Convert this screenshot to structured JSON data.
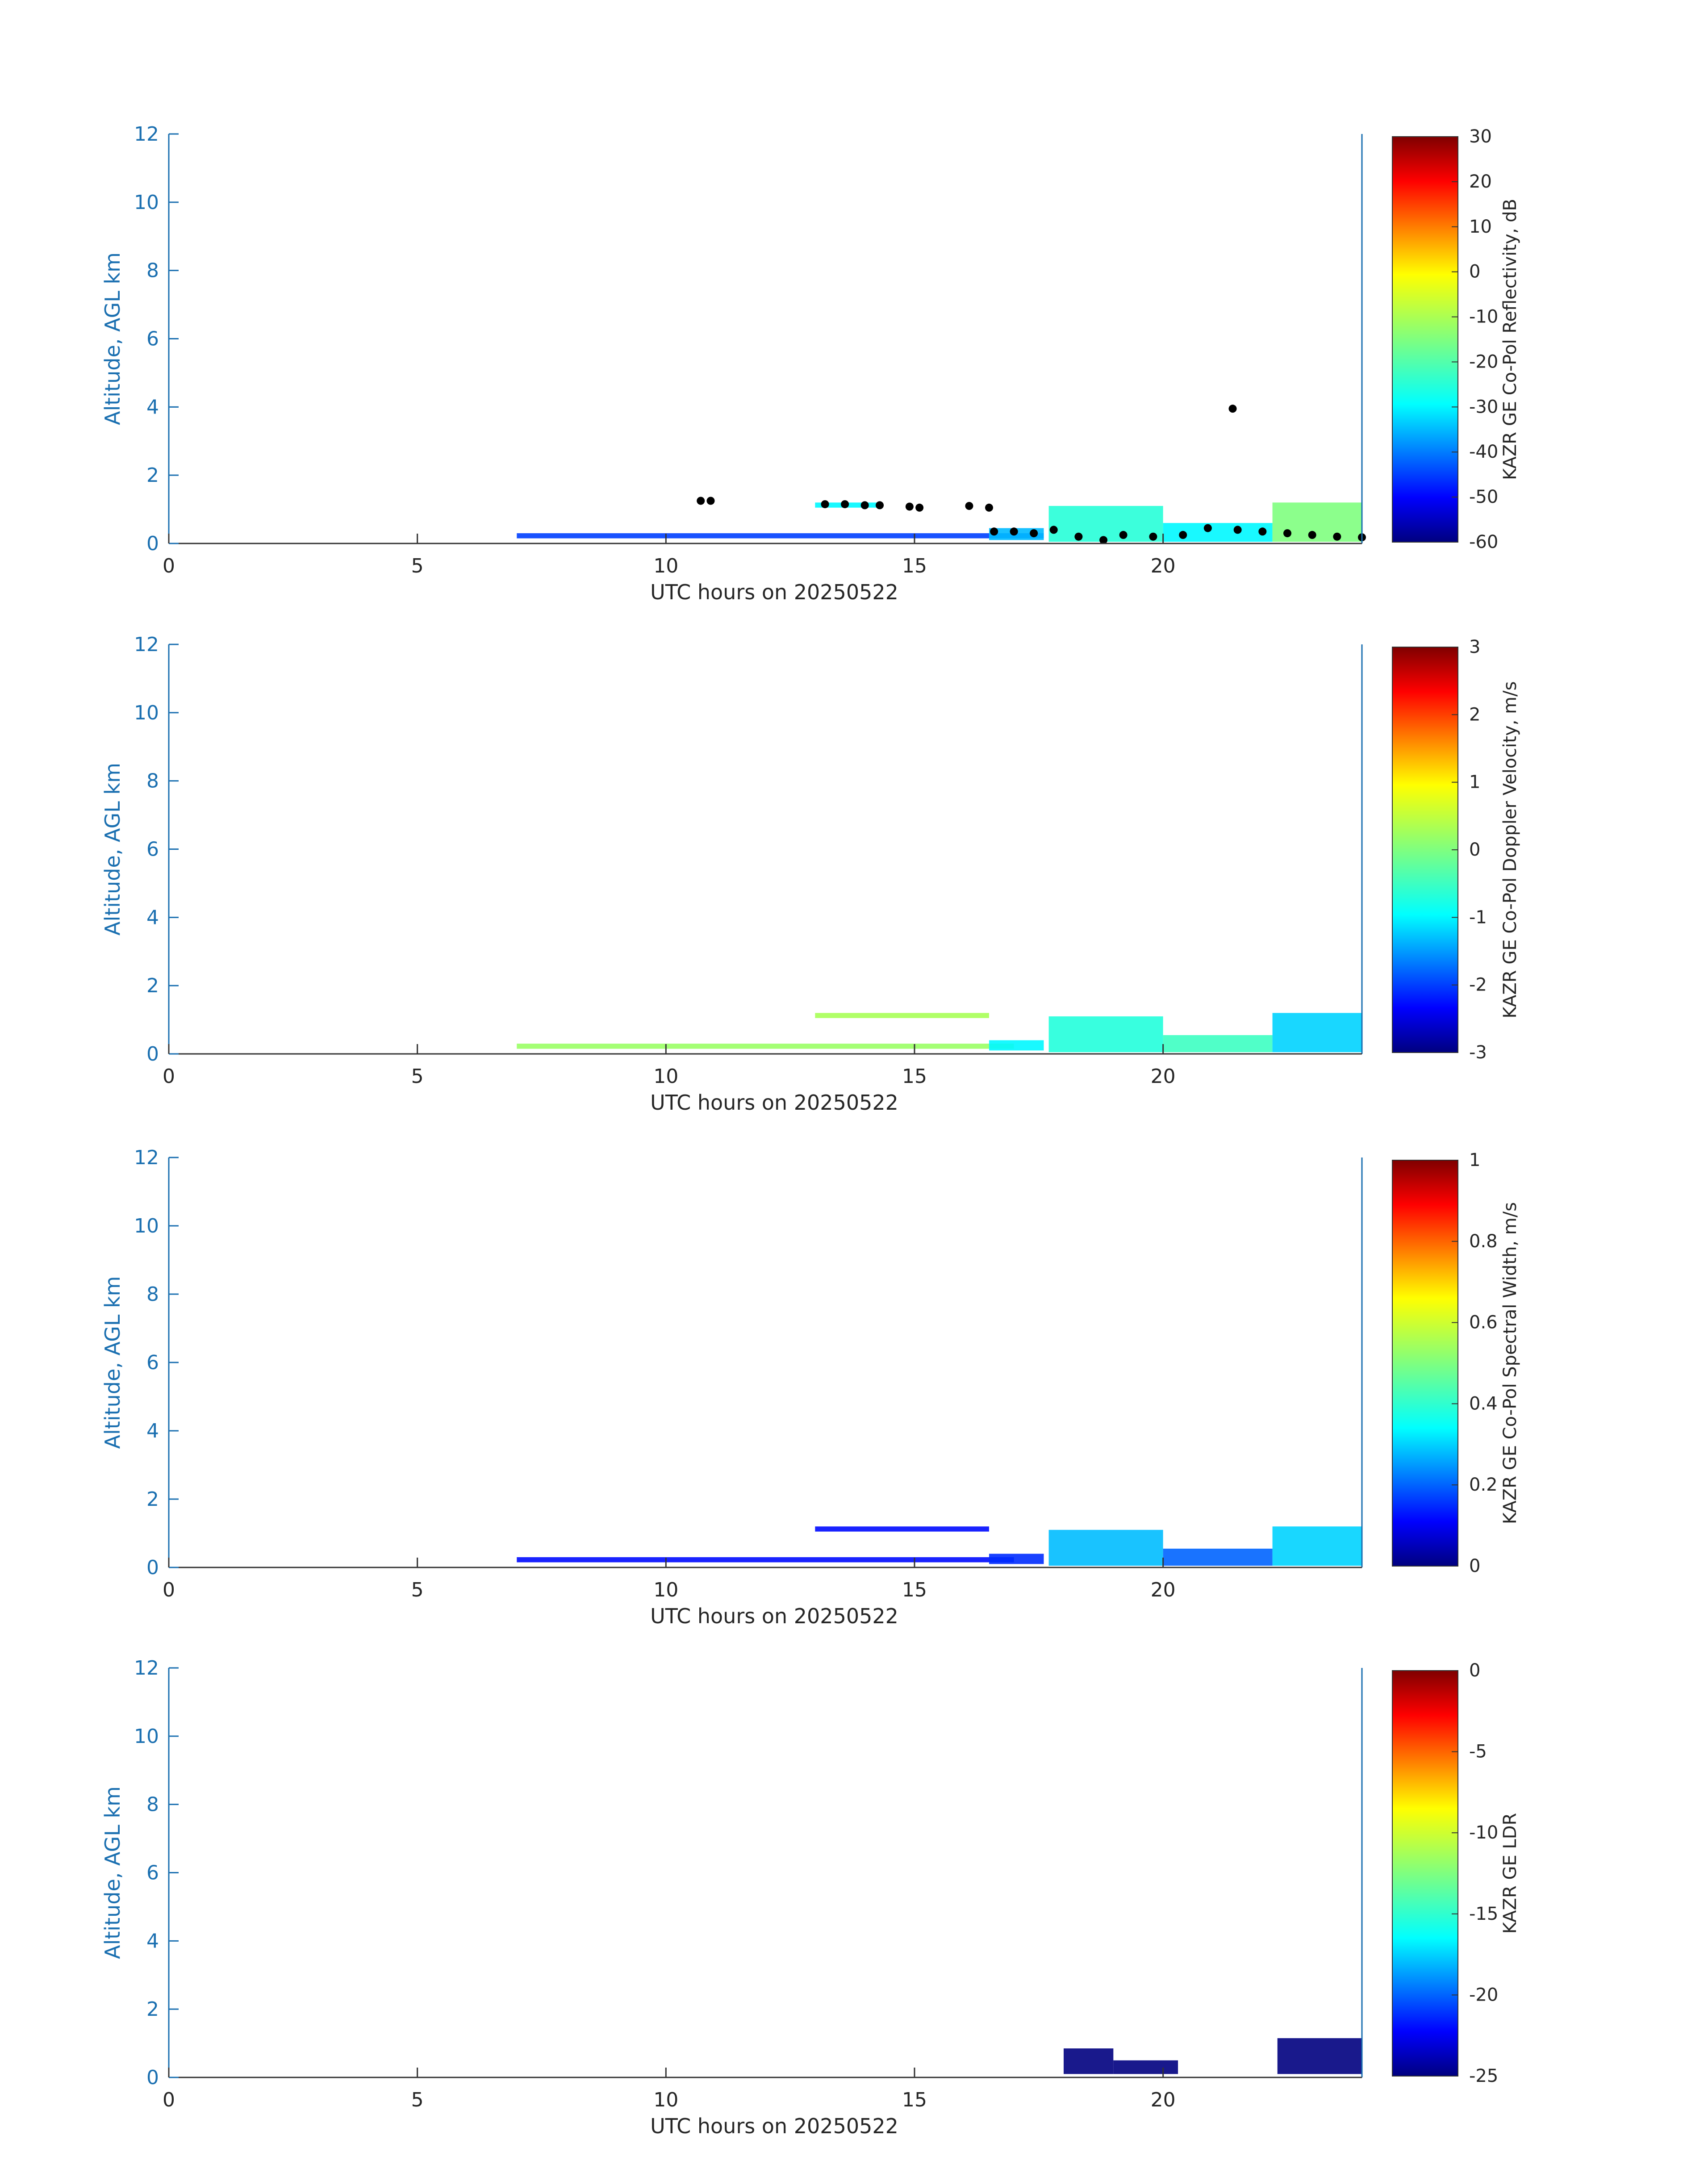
{
  "chart_data": [
    {
      "type": "heatmap",
      "xlabel": "UTC hours on 20250522",
      "ylabel": "Altitude, AGL km",
      "xlim": [
        0,
        24
      ],
      "ylim": [
        0,
        12
      ],
      "x_ticks": [
        "0",
        "5",
        "10",
        "15",
        "20"
      ],
      "y_ticks": [
        "0",
        "2",
        "4",
        "6",
        "8",
        "10",
        "12"
      ],
      "colorbar": {
        "label": "KAZR GE Co-Pol Reflectivity, dB",
        "range": [
          -60,
          30
        ],
        "ticks": [
          "30",
          "20",
          "10",
          "0",
          "-10",
          "-20",
          "-30",
          "-40",
          "-50",
          "-60"
        ]
      },
      "echo_blocks": [
        {
          "x0": 7.0,
          "x1": 17.6,
          "y0": 0.15,
          "y1": 0.3,
          "value": -45
        },
        {
          "x0": 16.5,
          "x1": 17.6,
          "y0": 0.1,
          "y1": 0.45,
          "value": -35
        },
        {
          "x0": 17.7,
          "x1": 20.0,
          "y0": 0.05,
          "y1": 1.1,
          "value": -25
        },
        {
          "x0": 20.0,
          "x1": 22.2,
          "y0": 0.05,
          "y1": 0.6,
          "value": -30
        },
        {
          "x0": 22.2,
          "x1": 24.0,
          "y0": 0.05,
          "y1": 1.2,
          "value": -15
        },
        {
          "x0": 13.0,
          "x1": 14.3,
          "y0": 1.05,
          "y1": 1.2,
          "value": -30
        }
      ],
      "cloud_base_points": [
        {
          "x": 10.7,
          "y": 1.25
        },
        {
          "x": 10.9,
          "y": 1.25
        },
        {
          "x": 13.2,
          "y": 1.15
        },
        {
          "x": 13.6,
          "y": 1.15
        },
        {
          "x": 14.0,
          "y": 1.12
        },
        {
          "x": 14.3,
          "y": 1.12
        },
        {
          "x": 14.9,
          "y": 1.08
        },
        {
          "x": 15.1,
          "y": 1.05
        },
        {
          "x": 16.1,
          "y": 1.1
        },
        {
          "x": 16.5,
          "y": 1.05
        },
        {
          "x": 16.6,
          "y": 0.35
        },
        {
          "x": 17.0,
          "y": 0.35
        },
        {
          "x": 17.4,
          "y": 0.3
        },
        {
          "x": 17.8,
          "y": 0.4
        },
        {
          "x": 18.3,
          "y": 0.2
        },
        {
          "x": 18.8,
          "y": 0.1
        },
        {
          "x": 19.2,
          "y": 0.25
        },
        {
          "x": 19.8,
          "y": 0.2
        },
        {
          "x": 20.4,
          "y": 0.25
        },
        {
          "x": 20.9,
          "y": 0.45
        },
        {
          "x": 21.5,
          "y": 0.4
        },
        {
          "x": 22.0,
          "y": 0.35
        },
        {
          "x": 22.5,
          "y": 0.3
        },
        {
          "x": 23.0,
          "y": 0.25
        },
        {
          "x": 23.5,
          "y": 0.2
        },
        {
          "x": 24.0,
          "y": 0.18
        },
        {
          "x": 21.4,
          "y": 3.95
        }
      ]
    },
    {
      "type": "heatmap",
      "xlabel": "UTC hours on 20250522",
      "ylabel": "Altitude, AGL km",
      "xlim": [
        0,
        24
      ],
      "ylim": [
        0,
        12
      ],
      "x_ticks": [
        "0",
        "5",
        "10",
        "15",
        "20"
      ],
      "y_ticks": [
        "0",
        "2",
        "4",
        "6",
        "8",
        "10",
        "12"
      ],
      "colorbar": {
        "label": "KAZR GE Co-Pol Doppler Velocity, m/s",
        "range": [
          -3,
          3
        ],
        "ticks": [
          "3",
          "2",
          "1",
          "0",
          "-1",
          "-2",
          "-3"
        ]
      },
      "echo_blocks": [
        {
          "x0": 7.0,
          "x1": 17.0,
          "y0": 0.15,
          "y1": 0.3,
          "value": 0.2
        },
        {
          "x0": 16.5,
          "x1": 17.6,
          "y0": 0.1,
          "y1": 0.4,
          "value": -1.0
        },
        {
          "x0": 17.7,
          "x1": 20.0,
          "y0": 0.05,
          "y1": 1.1,
          "value": -0.7
        },
        {
          "x0": 20.0,
          "x1": 22.2,
          "y0": 0.05,
          "y1": 0.55,
          "value": -0.5
        },
        {
          "x0": 22.2,
          "x1": 24.0,
          "y0": 0.05,
          "y1": 1.2,
          "value": -1.2
        },
        {
          "x0": 13.0,
          "x1": 16.5,
          "y0": 1.05,
          "y1": 1.2,
          "value": 0.3
        }
      ]
    },
    {
      "type": "heatmap",
      "xlabel": "UTC hours on 20250522",
      "ylabel": "Altitude, AGL km",
      "xlim": [
        0,
        24
      ],
      "ylim": [
        0,
        12
      ],
      "x_ticks": [
        "0",
        "5",
        "10",
        "15",
        "20"
      ],
      "y_ticks": [
        "0",
        "2",
        "4",
        "6",
        "8",
        "10",
        "12"
      ],
      "colorbar": {
        "label": "KAZR GE Co-Pol Spectral Width, m/s",
        "range": [
          0,
          1
        ],
        "ticks": [
          "1",
          "0.8",
          "0.6",
          "0.4",
          "0.2",
          "0"
        ]
      },
      "echo_blocks": [
        {
          "x0": 7.0,
          "x1": 17.0,
          "y0": 0.15,
          "y1": 0.3,
          "value": 0.12
        },
        {
          "x0": 16.5,
          "x1": 17.6,
          "y0": 0.1,
          "y1": 0.4,
          "value": 0.15
        },
        {
          "x0": 17.7,
          "x1": 20.0,
          "y0": 0.05,
          "y1": 1.1,
          "value": 0.28
        },
        {
          "x0": 20.0,
          "x1": 22.2,
          "y0": 0.05,
          "y1": 0.55,
          "value": 0.2
        },
        {
          "x0": 22.2,
          "x1": 24.0,
          "y0": 0.05,
          "y1": 1.2,
          "value": 0.3
        },
        {
          "x0": 13.0,
          "x1": 16.5,
          "y0": 1.05,
          "y1": 1.2,
          "value": 0.12
        }
      ]
    },
    {
      "type": "heatmap",
      "xlabel": "UTC hours on 20250522",
      "ylabel": "Altitude, AGL km",
      "xlim": [
        0,
        24
      ],
      "ylim": [
        0,
        12
      ],
      "x_ticks": [
        "0",
        "5",
        "10",
        "15",
        "20"
      ],
      "y_ticks": [
        "0",
        "2",
        "4",
        "6",
        "8",
        "10",
        "12"
      ],
      "colorbar": {
        "label": "KAZR GE LDR",
        "range": [
          -25,
          0
        ],
        "ticks": [
          "0",
          "-5",
          "-10",
          "-15",
          "-20",
          "-25"
        ]
      },
      "echo_blocks": [
        {
          "x0": 18.0,
          "x1": 19.0,
          "y0": 0.1,
          "y1": 0.85,
          "value": -25
        },
        {
          "x0": 19.0,
          "x1": 20.3,
          "y0": 0.1,
          "y1": 0.5,
          "value": -25
        },
        {
          "x0": 22.3,
          "x1": 24.0,
          "y0": 0.1,
          "y1": 1.15,
          "value": -25
        }
      ]
    }
  ],
  "colors": {
    "axis_blue": "#1a6fb0",
    "text_dark": "#262626",
    "cloud_base": "#000000"
  }
}
